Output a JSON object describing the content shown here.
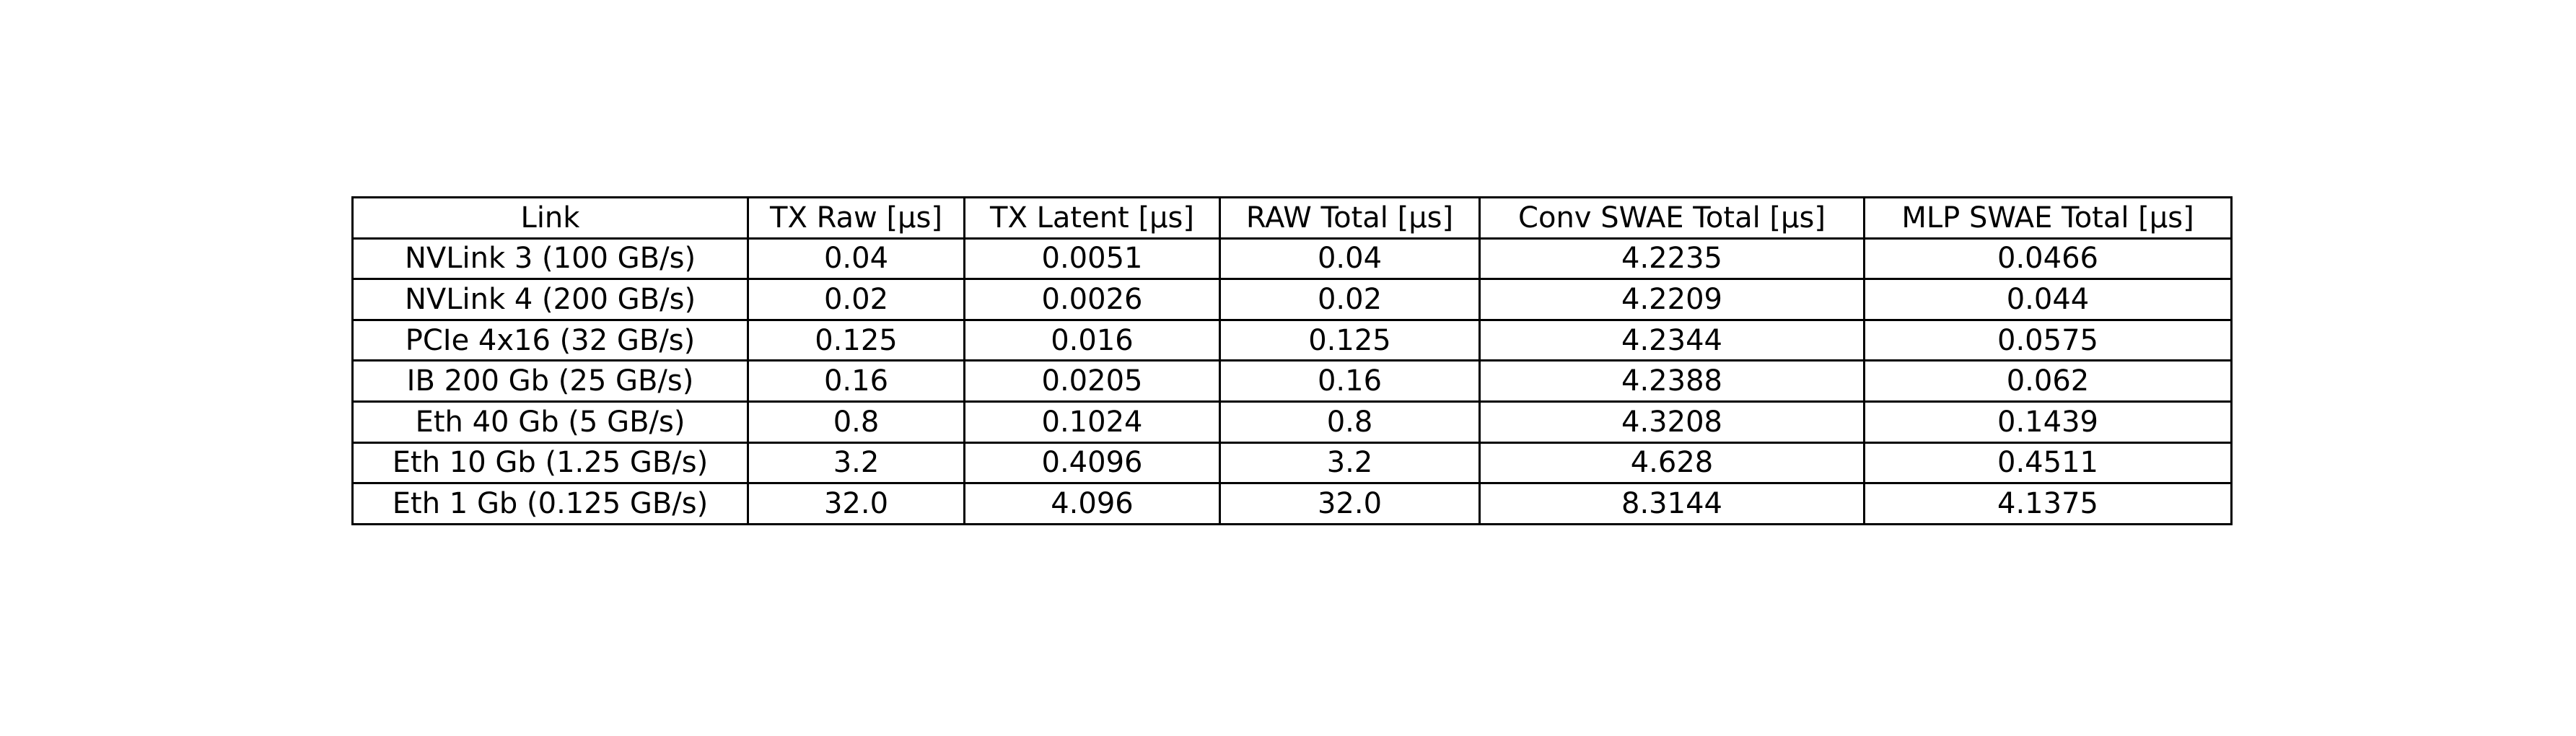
{
  "chart_data": {
    "type": "table",
    "columns": [
      "Link",
      "TX Raw [µs]",
      "TX Latent [µs]",
      "RAW Total [µs]",
      "Conv SWAE Total [µs]",
      "MLP SWAE Total [µs]"
    ],
    "rows": [
      [
        "NVLink 3 (100 GB/s)",
        "0.04",
        "0.0051",
        "0.04",
        "4.2235",
        "0.0466"
      ],
      [
        "NVLink 4 (200 GB/s)",
        "0.02",
        "0.0026",
        "0.02",
        "4.2209",
        "0.044"
      ],
      [
        "PCIe 4x16 (32 GB/s)",
        "0.125",
        "0.016",
        "0.125",
        "4.2344",
        "0.0575"
      ],
      [
        "IB 200 Gb (25 GB/s)",
        "0.16",
        "0.0205",
        "0.16",
        "4.2388",
        "0.062"
      ],
      [
        "Eth 40 Gb (5 GB/s)",
        "0.8",
        "0.1024",
        "0.8",
        "4.3208",
        "0.1439"
      ],
      [
        "Eth 10 Gb (1.25 GB/s)",
        "3.2",
        "0.4096",
        "3.2",
        "4.628",
        "0.4511"
      ],
      [
        "Eth 1 Gb (0.125 GB/s)",
        "32.0",
        "4.096",
        "32.0",
        "8.3144",
        "4.1375"
      ]
    ]
  },
  "colors": {
    "border": "#000000",
    "text": "#000000",
    "background": "#ffffff"
  }
}
